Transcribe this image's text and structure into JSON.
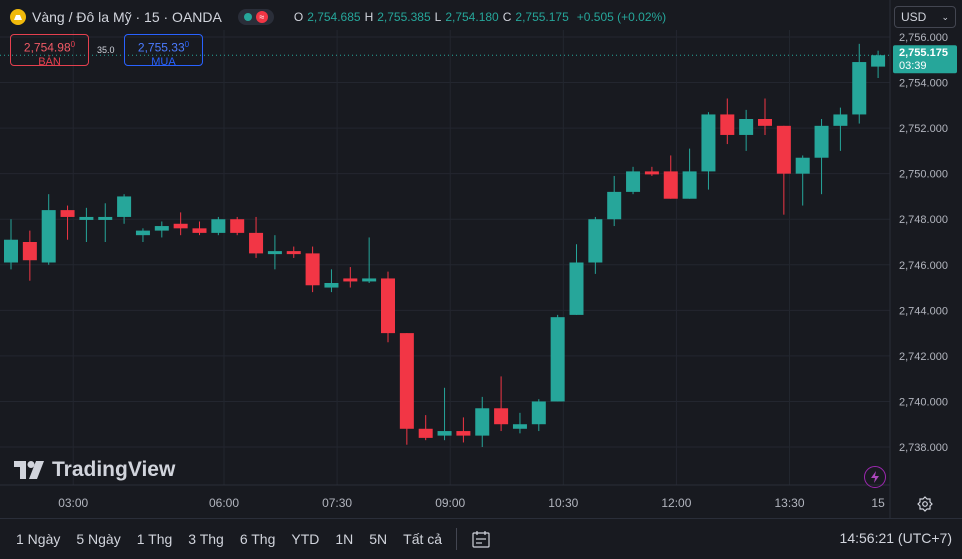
{
  "header": {
    "title": "Vàng / Đô la Mỹ · 15 · OANDA",
    "ohlc": [
      {
        "label": "O",
        "value": "2,754.685"
      },
      {
        "label": "H",
        "value": "2,755.385"
      },
      {
        "label": "L",
        "value": "2,754.180"
      },
      {
        "label": "C",
        "value": "2,755.175"
      }
    ],
    "change": "+0.505 (+0.02%)"
  },
  "trade": {
    "sell_price": "2,754.98",
    "sell_price_small": "0",
    "sell_label": "BÁN",
    "spread": "35.0",
    "buy_price": "2,755.33",
    "buy_price_small": "0",
    "buy_label": "MUA"
  },
  "currency": {
    "value": "USD"
  },
  "last_price": {
    "value": "2,755.175",
    "countdown": "03:39"
  },
  "brand": {
    "name": "TradingView"
  },
  "footer": {
    "ranges": [
      "1 Ngày",
      "5 Ngày",
      "1 Thg",
      "3 Thg",
      "6 Thg",
      "YTD",
      "1N",
      "5N",
      "Tất cả"
    ],
    "clock": "14:56:21 (UTC+7)"
  },
  "colors": {
    "up": "#26a69a",
    "down": "#f23645",
    "background": "#181a20",
    "grid": "#23262f"
  },
  "chart_data": {
    "type": "candlestick",
    "ylim": [
      2736.5,
      2756.5
    ],
    "y_ticks": [
      "2,738.000",
      "2,740.000",
      "2,742.000",
      "2,744.000",
      "2,746.000",
      "2,748.000",
      "2,750.000",
      "2,752.000",
      "2,754.000",
      "2,756.000"
    ],
    "y_tick_values": [
      2738,
      2740,
      2742,
      2744,
      2746,
      2748,
      2750,
      2752,
      2754,
      2756
    ],
    "x_ticks": [
      "03:00",
      "06:00",
      "07:30",
      "09:00",
      "10:30",
      "12:00",
      "13:30",
      "15"
    ],
    "x_tick_positions": [
      3.3,
      11.3,
      17.3,
      23.3,
      29.3,
      35.3,
      41.3,
      46.0
    ],
    "candles": [
      {
        "o": 2746.1,
        "h": 2748.0,
        "l": 2745.8,
        "c": 2747.1
      },
      {
        "o": 2747.0,
        "h": 2747.5,
        "l": 2745.3,
        "c": 2746.2
      },
      {
        "o": 2746.1,
        "h": 2749.1,
        "l": 2746.0,
        "c": 2748.4
      },
      {
        "o": 2748.4,
        "h": 2748.6,
        "l": 2747.1,
        "c": 2748.1
      },
      {
        "o": 2748.0,
        "h": 2748.5,
        "l": 2747.0,
        "c": 2748.1
      },
      {
        "o": 2748.1,
        "h": 2748.7,
        "l": 2747.0,
        "c": 2748.1
      },
      {
        "o": 2748.1,
        "h": 2749.1,
        "l": 2747.8,
        "c": 2749.0
      },
      {
        "o": 2747.3,
        "h": 2747.6,
        "l": 2747.0,
        "c": 2747.5
      },
      {
        "o": 2747.5,
        "h": 2747.9,
        "l": 2747.2,
        "c": 2747.7
      },
      {
        "o": 2747.8,
        "h": 2748.3,
        "l": 2747.3,
        "c": 2747.6
      },
      {
        "o": 2747.6,
        "h": 2747.9,
        "l": 2747.3,
        "c": 2747.4
      },
      {
        "o": 2747.4,
        "h": 2748.1,
        "l": 2747.3,
        "c": 2748.0
      },
      {
        "o": 2748.0,
        "h": 2748.1,
        "l": 2747.3,
        "c": 2747.4
      },
      {
        "o": 2747.4,
        "h": 2748.1,
        "l": 2746.3,
        "c": 2746.5
      },
      {
        "o": 2746.5,
        "h": 2747.3,
        "l": 2745.8,
        "c": 2746.6
      },
      {
        "o": 2746.6,
        "h": 2746.8,
        "l": 2746.3,
        "c": 2746.5
      },
      {
        "o": 2746.5,
        "h": 2746.8,
        "l": 2744.8,
        "c": 2745.1
      },
      {
        "o": 2745.0,
        "h": 2745.8,
        "l": 2744.8,
        "c": 2745.2
      },
      {
        "o": 2745.4,
        "h": 2745.9,
        "l": 2745.0,
        "c": 2745.3
      },
      {
        "o": 2745.3,
        "h": 2747.2,
        "l": 2745.2,
        "c": 2745.4
      },
      {
        "o": 2745.4,
        "h": 2745.7,
        "l": 2742.6,
        "c": 2743.0
      },
      {
        "o": 2743.0,
        "h": 2743.0,
        "l": 2738.1,
        "c": 2738.8
      },
      {
        "o": 2738.8,
        "h": 2739.4,
        "l": 2738.3,
        "c": 2738.4
      },
      {
        "o": 2738.5,
        "h": 2740.6,
        "l": 2738.3,
        "c": 2738.7
      },
      {
        "o": 2738.7,
        "h": 2739.3,
        "l": 2738.2,
        "c": 2738.5
      },
      {
        "o": 2738.5,
        "h": 2740.2,
        "l": 2738.0,
        "c": 2739.7
      },
      {
        "o": 2739.7,
        "h": 2741.1,
        "l": 2738.7,
        "c": 2739.0
      },
      {
        "o": 2738.8,
        "h": 2739.5,
        "l": 2738.6,
        "c": 2739.0
      },
      {
        "o": 2739.0,
        "h": 2740.1,
        "l": 2738.7,
        "c": 2740.0
      },
      {
        "o": 2740.0,
        "h": 2743.8,
        "l": 2740.0,
        "c": 2743.7
      },
      {
        "o": 2743.8,
        "h": 2746.9,
        "l": 2743.8,
        "c": 2746.1
      },
      {
        "o": 2746.1,
        "h": 2748.1,
        "l": 2745.6,
        "c": 2748.0
      },
      {
        "o": 2748.0,
        "h": 2749.9,
        "l": 2747.7,
        "c": 2749.2
      },
      {
        "o": 2749.2,
        "h": 2750.3,
        "l": 2749.1,
        "c": 2750.1
      },
      {
        "o": 2750.1,
        "h": 2750.3,
        "l": 2749.9,
        "c": 2750.0
      },
      {
        "o": 2750.1,
        "h": 2750.8,
        "l": 2748.9,
        "c": 2748.9
      },
      {
        "o": 2748.9,
        "h": 2751.1,
        "l": 2748.9,
        "c": 2750.1
      },
      {
        "o": 2750.1,
        "h": 2752.7,
        "l": 2749.3,
        "c": 2752.6
      },
      {
        "o": 2752.6,
        "h": 2753.3,
        "l": 2751.3,
        "c": 2751.7
      },
      {
        "o": 2751.7,
        "h": 2752.8,
        "l": 2751.0,
        "c": 2752.4
      },
      {
        "o": 2752.4,
        "h": 2753.3,
        "l": 2751.7,
        "c": 2752.1
      },
      {
        "o": 2752.1,
        "h": 2752.1,
        "l": 2748.2,
        "c": 2750.0
      },
      {
        "o": 2750.0,
        "h": 2750.8,
        "l": 2748.6,
        "c": 2750.7
      },
      {
        "o": 2750.7,
        "h": 2752.4,
        "l": 2749.1,
        "c": 2752.1
      },
      {
        "o": 2752.1,
        "h": 2752.9,
        "l": 2751.0,
        "c": 2752.6
      },
      {
        "o": 2752.6,
        "h": 2755.7,
        "l": 2752.2,
        "c": 2754.9
      },
      {
        "o": 2754.7,
        "h": 2755.4,
        "l": 2754.2,
        "c": 2755.2
      }
    ]
  }
}
